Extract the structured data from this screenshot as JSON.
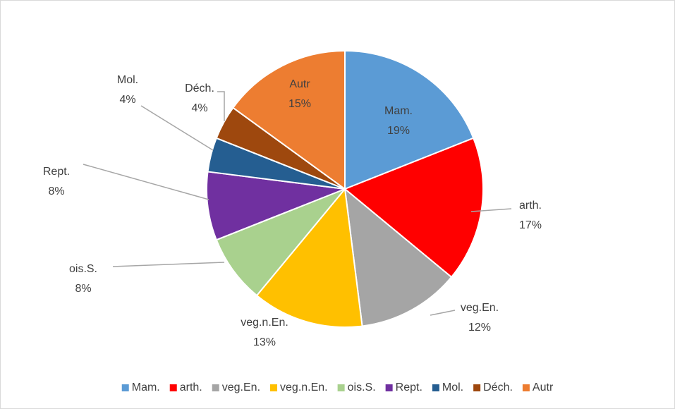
{
  "chart_data": {
    "type": "pie",
    "categories": [
      "Mam.",
      "arth.",
      "veg.En.",
      "veg.n.En.",
      "ois.S.",
      "Rept.",
      "Mol.",
      "Déch.",
      "Autr"
    ],
    "values": [
      19,
      17,
      12,
      13,
      8,
      8,
      4,
      4,
      15
    ],
    "value_labels": [
      "19%",
      "17%",
      "12%",
      "13%",
      "8%",
      "8%",
      "4%",
      "4%",
      "15%"
    ],
    "colors": [
      "#5b9bd5",
      "#ff0000",
      "#a5a5a5",
      "#ffc000",
      "#a9d18e",
      "#7030a0",
      "#255e91",
      "#9e480e",
      "#ed7d31"
    ],
    "legend": "bottom"
  }
}
